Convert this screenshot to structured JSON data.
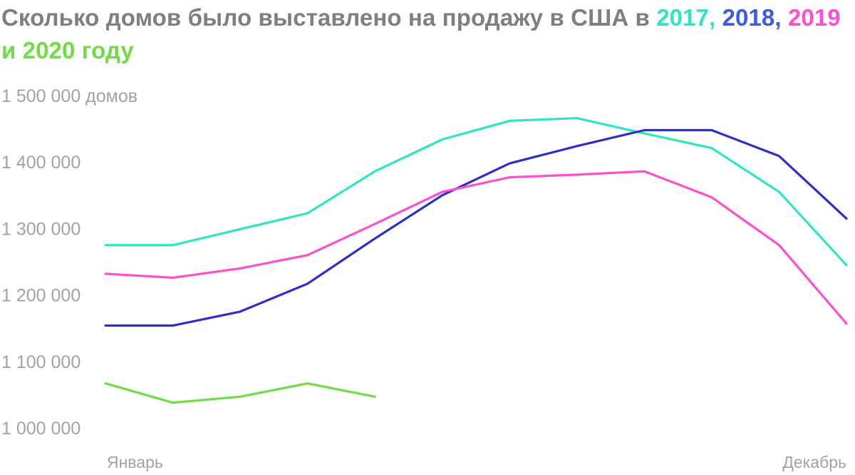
{
  "chart_data": {
    "type": "line",
    "title": {
      "prefix": "Сколько домов было выставлено на продажу в США в ",
      "parts": [
        {
          "text": "2017",
          "color": "#2ee6c1"
        },
        {
          "text": ", ",
          "color": "#2ee6c1"
        },
        {
          "text": "2018",
          "color": "#3a5ce6"
        },
        {
          "text": ",",
          "color": "#3a5ce6"
        },
        {
          "text": " ",
          "color": "#7f7f7f"
        },
        {
          "text": "2019",
          "color": "#ff4fd0"
        },
        {
          "text": " и ",
          "color": "#70dd45"
        },
        {
          "text": "2020",
          "color": "#70dd45"
        },
        {
          "text": " году",
          "color": "#70dd45"
        }
      ]
    },
    "x_labels": {
      "first": "Январь",
      "last": "Декабрь"
    },
    "y_ticks": [
      {
        "value": 1500000,
        "label": "1 500 000 домов"
      },
      {
        "value": 1400000,
        "label": "1 400 000"
      },
      {
        "value": 1300000,
        "label": "1 300 000"
      },
      {
        "value": 1200000,
        "label": "1 200 000"
      },
      {
        "value": 1100000,
        "label": "1 100 000"
      },
      {
        "value": 1000000,
        "label": "1 000 000"
      }
    ],
    "ylim": [
      1000000,
      1500000
    ],
    "months": 12,
    "grid": false,
    "legend": "none",
    "series": [
      {
        "color": "#2ee6c1",
        "values": [
          1275000,
          1275000,
          1299000,
          1323000,
          1386000,
          1434000,
          1462000,
          1466000,
          1443000,
          1421000,
          1355000,
          1245000
        ]
      },
      {
        "color": "#2e2fcb",
        "values": [
          1154000,
          1154000,
          1175000,
          1217000,
          1285000,
          1350000,
          1398000,
          1424000,
          1448000,
          1448000,
          1409000,
          1315000
        ]
      },
      {
        "color": "#ff4fd0",
        "values": [
          1232000,
          1226000,
          1240000,
          1260000,
          1307000,
          1355000,
          1377000,
          1381000,
          1386000,
          1347000,
          1275000,
          1157000
        ]
      },
      {
        "color": "#70dd45",
        "values": [
          1067000,
          1038000,
          1047000,
          1067000,
          1047000
        ]
      }
    ]
  }
}
